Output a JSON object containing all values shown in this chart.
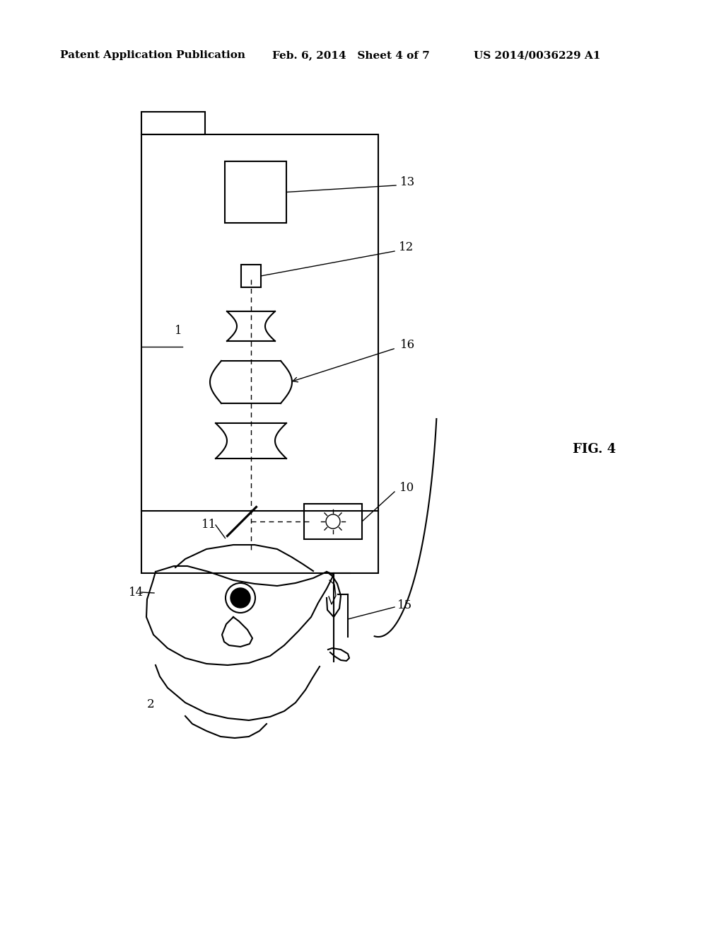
{
  "bg_color": "#ffffff",
  "header_left": "Patent Application Publication",
  "header_mid": "Feb. 6, 2014   Sheet 4 of 7",
  "header_right": "US 2014/0036229 A1",
  "fig_label": "FIG. 4",
  "label_1": "1",
  "label_2": "2",
  "label_10": "10",
  "label_11": "11",
  "label_12": "12",
  "label_13": "13",
  "label_14": "14",
  "label_15": "15",
  "label_16": "16"
}
